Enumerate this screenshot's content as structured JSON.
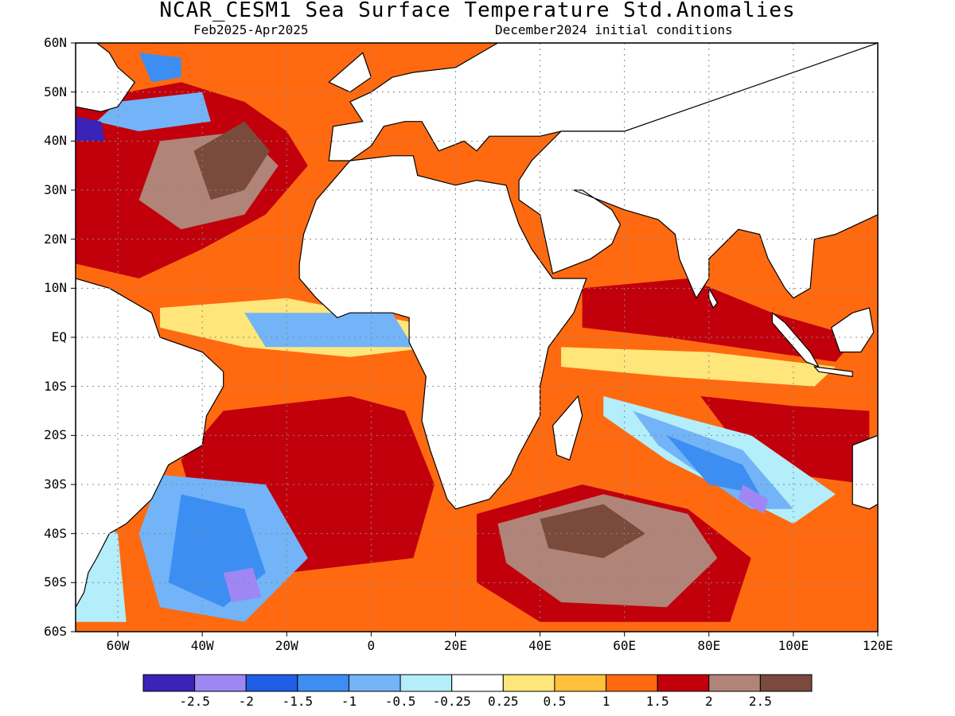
{
  "title": "NCAR_CESM1 Sea Surface Temperature Std.Anomalies",
  "subtitle_left": "Feb2025-Apr2025",
  "subtitle_right": "December2024 initial conditions",
  "lat_labels": [
    "60N",
    "50N",
    "40N",
    "30N",
    "20N",
    "10N",
    "EQ",
    "10S",
    "20S",
    "30S",
    "40S",
    "50S",
    "60S"
  ],
  "lon_labels": [
    "60W",
    "40W",
    "20W",
    "0",
    "20E",
    "40E",
    "60E",
    "80E",
    "100E",
    "120E"
  ],
  "colorbar": {
    "colors": [
      "#3b22b8",
      "#9f86f5",
      "#1f5ee6",
      "#3c8ef2",
      "#72b4f7",
      "#b3eefa",
      "#ffffff",
      "#ffe67a",
      "#ffc03c",
      "#ff6a10",
      "#c2000c",
      "#b08478",
      "#7a4a3c"
    ],
    "labels": [
      "-2.5",
      "-2",
      "-1.5",
      "-1",
      "-0.5",
      "-0.25",
      "0.25",
      "0.5",
      "1",
      "1.5",
      "2",
      "2.5"
    ]
  },
  "extent": {
    "lon_min": -70,
    "lon_max": 120,
    "lat_min": -60,
    "lat_max": 60
  },
  "anomaly_regions": [
    {
      "level": 1,
      "polygon": [
        [
          -70,
          60
        ],
        [
          120,
          60
        ],
        [
          120,
          -60
        ],
        [
          -70,
          -60
        ]
      ]
    },
    {
      "level": 1.5,
      "polygon": [
        [
          -70,
          48
        ],
        [
          -45,
          52
        ],
        [
          -30,
          48
        ],
        [
          -20,
          42
        ],
        [
          -15,
          35
        ],
        [
          -25,
          25
        ],
        [
          -40,
          18
        ],
        [
          -55,
          12
        ],
        [
          -70,
          15
        ]
      ]
    },
    {
      "level": 1.5,
      "polygon": [
        [
          -35,
          -15
        ],
        [
          -5,
          -12
        ],
        [
          8,
          -15
        ],
        [
          15,
          -30
        ],
        [
          10,
          -45
        ],
        [
          -20,
          -48
        ],
        [
          -40,
          -40
        ],
        [
          -45,
          -25
        ]
      ]
    },
    {
      "level": 1.5,
      "polygon": [
        [
          25,
          -36
        ],
        [
          50,
          -30
        ],
        [
          75,
          -35
        ],
        [
          90,
          -45
        ],
        [
          85,
          -58
        ],
        [
          40,
          -58
        ],
        [
          25,
          -50
        ]
      ]
    },
    {
      "level": 1.5,
      "polygon": [
        [
          50,
          10
        ],
        [
          75,
          12
        ],
        [
          95,
          5
        ],
        [
          115,
          0
        ],
        [
          110,
          -5
        ],
        [
          70,
          0
        ],
        [
          50,
          2
        ]
      ]
    },
    {
      "level": 1.5,
      "polygon": [
        [
          78,
          -12
        ],
        [
          100,
          -14
        ],
        [
          118,
          -15
        ],
        [
          118,
          -30
        ],
        [
          100,
          -28
        ],
        [
          85,
          -20
        ]
      ]
    },
    {
      "level": 2,
      "polygon": [
        [
          -50,
          40
        ],
        [
          -30,
          42
        ],
        [
          -22,
          35
        ],
        [
          -30,
          25
        ],
        [
          -45,
          22
        ],
        [
          -55,
          28
        ]
      ]
    },
    {
      "level": 2,
      "polygon": [
        [
          30,
          -38
        ],
        [
          55,
          -32
        ],
        [
          75,
          -36
        ],
        [
          82,
          -45
        ],
        [
          70,
          -55
        ],
        [
          45,
          -54
        ],
        [
          32,
          -46
        ]
      ]
    },
    {
      "level": 2.5,
      "polygon": [
        [
          -42,
          38
        ],
        [
          -30,
          44
        ],
        [
          -24,
          38
        ],
        [
          -30,
          30
        ],
        [
          -38,
          28
        ]
      ]
    },
    {
      "level": 2.5,
      "polygon": [
        [
          40,
          -37
        ],
        [
          55,
          -34
        ],
        [
          65,
          -40
        ],
        [
          55,
          -45
        ],
        [
          42,
          -43
        ]
      ]
    },
    {
      "level": 0.25,
      "polygon": [
        [
          -50,
          6
        ],
        [
          -20,
          8
        ],
        [
          10,
          3
        ],
        [
          15,
          -2
        ],
        [
          -5,
          -4
        ],
        [
          -30,
          -2
        ],
        [
          -50,
          2
        ]
      ]
    },
    {
      "level": 0.25,
      "polygon": [
        [
          45,
          -2
        ],
        [
          80,
          -3
        ],
        [
          110,
          -6
        ],
        [
          105,
          -10
        ],
        [
          70,
          -8
        ],
        [
          45,
          -6
        ]
      ]
    },
    {
      "level": -0.25,
      "polygon": [
        [
          55,
          -12
        ],
        [
          90,
          -20
        ],
        [
          110,
          -32
        ],
        [
          100,
          -38
        ],
        [
          70,
          -25
        ],
        [
          55,
          -16
        ]
      ]
    },
    {
      "level": -0.5,
      "polygon": [
        [
          62,
          -15
        ],
        [
          88,
          -23
        ],
        [
          100,
          -35
        ],
        [
          90,
          -35
        ],
        [
          68,
          -22
        ]
      ]
    },
    {
      "level": -1,
      "polygon": [
        [
          70,
          -20
        ],
        [
          88,
          -26
        ],
        [
          92,
          -32
        ],
        [
          80,
          -30
        ]
      ]
    },
    {
      "level": -2,
      "polygon": [
        [
          88,
          -30
        ],
        [
          94,
          -33
        ],
        [
          93,
          -36
        ],
        [
          87,
          -33
        ]
      ]
    },
    {
      "level": -0.5,
      "polygon": [
        [
          -30,
          5
        ],
        [
          5,
          5
        ],
        [
          10,
          -2
        ],
        [
          -25,
          -2
        ]
      ]
    },
    {
      "level": -0.5,
      "polygon": [
        [
          -50,
          -28
        ],
        [
          -25,
          -30
        ],
        [
          -15,
          -45
        ],
        [
          -30,
          -58
        ],
        [
          -50,
          -55
        ],
        [
          -55,
          -40
        ]
      ]
    },
    {
      "level": -1,
      "polygon": [
        [
          -45,
          -32
        ],
        [
          -30,
          -35
        ],
        [
          -25,
          -48
        ],
        [
          -35,
          -55
        ],
        [
          -48,
          -50
        ]
      ]
    },
    {
      "level": -2,
      "polygon": [
        [
          -35,
          -48
        ],
        [
          -28,
          -47
        ],
        [
          -26,
          -53
        ],
        [
          -33,
          -54
        ]
      ]
    },
    {
      "level": -0.5,
      "polygon": [
        [
          -60,
          48
        ],
        [
          -40,
          50
        ],
        [
          -38,
          44
        ],
        [
          -55,
          42
        ],
        [
          -65,
          44
        ]
      ]
    },
    {
      "level": -2.5,
      "polygon": [
        [
          -70,
          45
        ],
        [
          -64,
          44
        ],
        [
          -63,
          40
        ],
        [
          -70,
          40
        ]
      ]
    },
    {
      "level": -1,
      "polygon": [
        [
          -55,
          58
        ],
        [
          -45,
          57
        ],
        [
          -45,
          53
        ],
        [
          -52,
          52
        ]
      ]
    },
    {
      "level": -0.25,
      "polygon": [
        [
          -70,
          -35
        ],
        [
          -60,
          -40
        ],
        [
          -58,
          -58
        ],
        [
          -70,
          -58
        ]
      ]
    }
  ],
  "continents": [
    {
      "name": "africa",
      "polygon": [
        [
          -17,
          15
        ],
        [
          -16,
          21
        ],
        [
          -13,
          28
        ],
        [
          -9,
          32
        ],
        [
          -5,
          36
        ],
        [
          5,
          37
        ],
        [
          10,
          37
        ],
        [
          11,
          33
        ],
        [
          20,
          31
        ],
        [
          25,
          32
        ],
        [
          32,
          31
        ],
        [
          33,
          28
        ],
        [
          35,
          23
        ],
        [
          38,
          18
        ],
        [
          43,
          12
        ],
        [
          51,
          12
        ],
        [
          48,
          5
        ],
        [
          42,
          -2
        ],
        [
          40,
          -10
        ],
        [
          40,
          -16
        ],
        [
          35,
          -24
        ],
        [
          33,
          -28
        ],
        [
          28,
          -33
        ],
        [
          20,
          -35
        ],
        [
          18,
          -33
        ],
        [
          14,
          -23
        ],
        [
          12,
          -17
        ],
        [
          13,
          -8
        ],
        [
          9,
          -1
        ],
        [
          9,
          4
        ],
        [
          5,
          5
        ],
        [
          -5,
          5
        ],
        [
          -8,
          4
        ],
        [
          -13,
          8
        ],
        [
          -17,
          12
        ]
      ]
    },
    {
      "name": "europe",
      "polygon": [
        [
          -10,
          36
        ],
        [
          -9,
          43
        ],
        [
          -2,
          44
        ],
        [
          -5,
          48
        ],
        [
          0,
          50
        ],
        [
          5,
          53
        ],
        [
          10,
          54
        ],
        [
          20,
          55
        ],
        [
          30,
          60
        ],
        [
          120,
          60
        ],
        [
          120,
          40
        ],
        [
          60,
          42
        ],
        [
          45,
          42
        ],
        [
          40,
          41
        ],
        [
          28,
          41
        ],
        [
          25,
          38
        ],
        [
          22,
          40
        ],
        [
          16,
          38
        ],
        [
          12,
          44
        ],
        [
          8,
          44
        ],
        [
          3,
          43
        ],
        [
          0,
          39
        ],
        [
          -5,
          36
        ]
      ]
    },
    {
      "name": "arabia_asia",
      "polygon": [
        [
          35,
          28
        ],
        [
          40,
          25
        ],
        [
          43,
          13
        ],
        [
          52,
          16
        ],
        [
          57,
          19
        ],
        [
          59,
          23
        ],
        [
          57,
          26
        ],
        [
          50,
          30
        ],
        [
          48,
          30
        ],
        [
          60,
          26
        ],
        [
          68,
          24
        ],
        [
          72,
          21
        ],
        [
          73,
          16
        ],
        [
          77,
          8
        ],
        [
          80,
          12
        ],
        [
          80,
          16
        ],
        [
          87,
          22
        ],
        [
          92,
          21
        ],
        [
          94,
          16
        ],
        [
          98,
          10
        ],
        [
          100,
          8
        ],
        [
          104,
          10
        ],
        [
          105,
          20
        ],
        [
          110,
          21
        ],
        [
          115,
          23
        ],
        [
          120,
          25
        ],
        [
          120,
          60
        ],
        [
          60,
          42
        ],
        [
          45,
          42
        ],
        [
          38,
          36
        ],
        [
          35,
          32
        ]
      ]
    },
    {
      "name": "south_america",
      "polygon": [
        [
          -70,
          12
        ],
        [
          -62,
          10
        ],
        [
          -52,
          5
        ],
        [
          -50,
          0
        ],
        [
          -40,
          -3
        ],
        [
          -35,
          -7
        ],
        [
          -35,
          -10
        ],
        [
          -39,
          -16
        ],
        [
          -40,
          -22
        ],
        [
          -48,
          -26
        ],
        [
          -52,
          -33
        ],
        [
          -58,
          -38
        ],
        [
          -62,
          -40
        ],
        [
          -65,
          -45
        ],
        [
          -67,
          -48
        ],
        [
          -68,
          -52
        ],
        [
          -70,
          -55
        ],
        [
          -70,
          12
        ]
      ]
    },
    {
      "name": "north_america",
      "polygon": [
        [
          -70,
          60
        ],
        [
          -70,
          47
        ],
        [
          -64,
          46
        ],
        [
          -60,
          47
        ],
        [
          -56,
          52
        ],
        [
          -60,
          55
        ],
        [
          -62,
          58
        ],
        [
          -65,
          60
        ]
      ]
    },
    {
      "name": "greenland",
      "polygon": [
        [
          -52,
          60
        ],
        [
          -43,
          60
        ],
        [
          -44,
          60
        ]
      ]
    },
    {
      "name": "madagascar",
      "polygon": [
        [
          49,
          -12
        ],
        [
          50,
          -16
        ],
        [
          47,
          -25
        ],
        [
          44,
          -24
        ],
        [
          43,
          -18
        ],
        [
          47,
          -14
        ]
      ]
    },
    {
      "name": "australia",
      "polygon": [
        [
          114,
          -22
        ],
        [
          114,
          -34
        ],
        [
          118,
          -35
        ],
        [
          120,
          -34
        ],
        [
          120,
          -20
        ]
      ]
    },
    {
      "name": "sri_lanka",
      "polygon": [
        [
          80,
          10
        ],
        [
          82,
          7
        ],
        [
          81,
          6
        ],
        [
          80,
          8
        ]
      ]
    },
    {
      "name": "sumatra",
      "polygon": [
        [
          95,
          5
        ],
        [
          98,
          3
        ],
        [
          104,
          -3
        ],
        [
          106,
          -6
        ],
        [
          103,
          -5
        ],
        [
          98,
          0
        ],
        [
          95,
          3
        ]
      ]
    },
    {
      "name": "borneo",
      "polygon": [
        [
          109,
          2
        ],
        [
          114,
          5
        ],
        [
          118,
          6
        ],
        [
          119,
          1
        ],
        [
          116,
          -3
        ],
        [
          111,
          -3
        ]
      ]
    },
    {
      "name": "java",
      "polygon": [
        [
          105,
          -6
        ],
        [
          114,
          -7
        ],
        [
          114,
          -8
        ],
        [
          106,
          -7
        ]
      ]
    },
    {
      "name": "ireland_uk",
      "polygon": [
        [
          -10,
          52
        ],
        [
          -6,
          55
        ],
        [
          -2,
          58
        ],
        [
          0,
          53
        ],
        [
          -5,
          50
        ]
      ]
    }
  ]
}
